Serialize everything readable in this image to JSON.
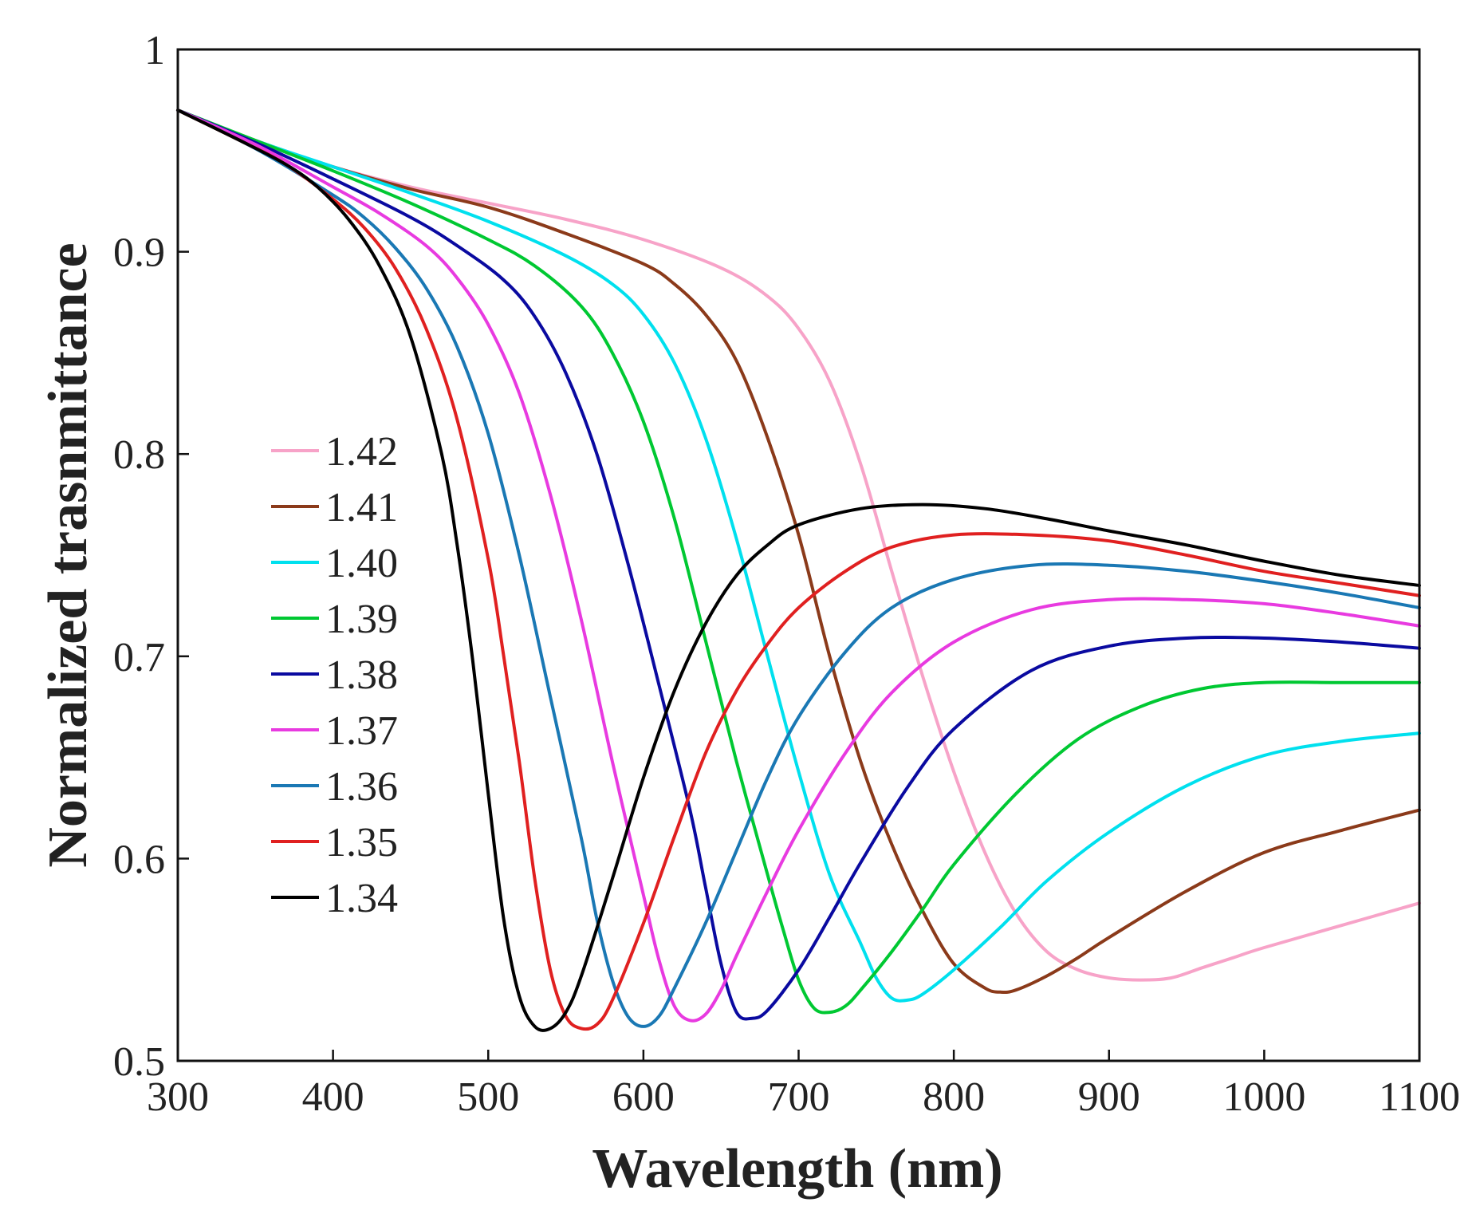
{
  "chart_data": {
    "type": "line",
    "title": "",
    "xlabel": "Wavelength (nm)",
    "ylabel": "Normalized trasnmittance",
    "xlim": [
      300,
      1100
    ],
    "ylim": [
      0.5,
      1
    ],
    "xticks": [
      300,
      400,
      500,
      600,
      700,
      800,
      900,
      1000,
      1100
    ],
    "xtick_labels": [
      "300",
      "400",
      "500",
      "600",
      "700",
      "800",
      "900",
      "1000",
      "1100"
    ],
    "yticks": [
      0.5,
      0.6,
      0.7,
      0.8,
      0.9,
      1
    ],
    "ytick_labels": [
      "0.5",
      "0.6",
      "0.7",
      "0.8",
      "0.9",
      "1"
    ],
    "grid": false,
    "legend_position": "center-left",
    "series": [
      {
        "name": "1.42",
        "color": "#f7a3c8",
        "points": [
          [
            300,
            0.97
          ],
          [
            350,
            0.955
          ],
          [
            400,
            0.942
          ],
          [
            450,
            0.932
          ],
          [
            500,
            0.924
          ],
          [
            550,
            0.916
          ],
          [
            600,
            0.906
          ],
          [
            650,
            0.892
          ],
          [
            680,
            0.878
          ],
          [
            700,
            0.862
          ],
          [
            720,
            0.836
          ],
          [
            740,
            0.795
          ],
          [
            760,
            0.742
          ],
          [
            780,
            0.69
          ],
          [
            800,
            0.643
          ],
          [
            820,
            0.603
          ],
          [
            840,
            0.573
          ],
          [
            860,
            0.554
          ],
          [
            880,
            0.545
          ],
          [
            900,
            0.541
          ],
          [
            920,
            0.54
          ],
          [
            940,
            0.541
          ],
          [
            960,
            0.546
          ],
          [
            980,
            0.551
          ],
          [
            1000,
            0.556
          ],
          [
            1050,
            0.567
          ],
          [
            1100,
            0.578
          ]
        ]
      },
      {
        "name": "1.41",
        "color": "#8b3a1a",
        "points": [
          [
            300,
            0.97
          ],
          [
            350,
            0.955
          ],
          [
            400,
            0.942
          ],
          [
            450,
            0.931
          ],
          [
            500,
            0.922
          ],
          [
            550,
            0.909
          ],
          [
            600,
            0.894
          ],
          [
            620,
            0.884
          ],
          [
            640,
            0.869
          ],
          [
            660,
            0.846
          ],
          [
            680,
            0.808
          ],
          [
            700,
            0.76
          ],
          [
            720,
            0.7
          ],
          [
            740,
            0.648
          ],
          [
            760,
            0.607
          ],
          [
            780,
            0.574
          ],
          [
            800,
            0.548
          ],
          [
            820,
            0.536
          ],
          [
            830,
            0.534
          ],
          [
            840,
            0.535
          ],
          [
            860,
            0.542
          ],
          [
            880,
            0.551
          ],
          [
            900,
            0.561
          ],
          [
            950,
            0.584
          ],
          [
            1000,
            0.603
          ],
          [
            1050,
            0.614
          ],
          [
            1100,
            0.624
          ]
        ]
      },
      {
        "name": "1.40",
        "color": "#00e0ee",
        "points": [
          [
            300,
            0.97
          ],
          [
            350,
            0.955
          ],
          [
            400,
            0.942
          ],
          [
            450,
            0.929
          ],
          [
            500,
            0.915
          ],
          [
            550,
            0.898
          ],
          [
            580,
            0.884
          ],
          [
            600,
            0.869
          ],
          [
            620,
            0.845
          ],
          [
            640,
            0.808
          ],
          [
            660,
            0.758
          ],
          [
            680,
            0.7
          ],
          [
            700,
            0.643
          ],
          [
            720,
            0.592
          ],
          [
            740,
            0.558
          ],
          [
            750,
            0.541
          ],
          [
            760,
            0.531
          ],
          [
            770,
            0.53
          ],
          [
            780,
            0.533
          ],
          [
            800,
            0.545
          ],
          [
            830,
            0.566
          ],
          [
            860,
            0.589
          ],
          [
            900,
            0.613
          ],
          [
            950,
            0.636
          ],
          [
            1000,
            0.651
          ],
          [
            1050,
            0.658
          ],
          [
            1100,
            0.662
          ]
        ]
      },
      {
        "name": "1.39",
        "color": "#00c832",
        "points": [
          [
            300,
            0.97
          ],
          [
            350,
            0.955
          ],
          [
            400,
            0.94
          ],
          [
            450,
            0.924
          ],
          [
            500,
            0.906
          ],
          [
            530,
            0.893
          ],
          [
            560,
            0.873
          ],
          [
            580,
            0.85
          ],
          [
            600,
            0.816
          ],
          [
            620,
            0.768
          ],
          [
            640,
            0.708
          ],
          [
            660,
            0.648
          ],
          [
            680,
            0.592
          ],
          [
            690,
            0.565
          ],
          [
            700,
            0.54
          ],
          [
            710,
            0.526
          ],
          [
            720,
            0.524
          ],
          [
            730,
            0.527
          ],
          [
            740,
            0.535
          ],
          [
            760,
            0.554
          ],
          [
            780,
            0.575
          ],
          [
            800,
            0.597
          ],
          [
            840,
            0.632
          ],
          [
            880,
            0.659
          ],
          [
            920,
            0.675
          ],
          [
            960,
            0.684
          ],
          [
            1000,
            0.687
          ],
          [
            1050,
            0.687
          ],
          [
            1100,
            0.687
          ]
        ]
      },
      {
        "name": "1.38",
        "color": "#0a0aa0",
        "points": [
          [
            300,
            0.97
          ],
          [
            350,
            0.954
          ],
          [
            400,
            0.936
          ],
          [
            450,
            0.917
          ],
          [
            480,
            0.903
          ],
          [
            510,
            0.886
          ],
          [
            530,
            0.868
          ],
          [
            550,
            0.84
          ],
          [
            570,
            0.8
          ],
          [
            590,
            0.746
          ],
          [
            610,
            0.686
          ],
          [
            630,
            0.624
          ],
          [
            640,
            0.586
          ],
          [
            650,
            0.548
          ],
          [
            660,
            0.524
          ],
          [
            670,
            0.521
          ],
          [
            680,
            0.525
          ],
          [
            700,
            0.545
          ],
          [
            720,
            0.571
          ],
          [
            740,
            0.598
          ],
          [
            770,
            0.635
          ],
          [
            800,
            0.664
          ],
          [
            850,
            0.693
          ],
          [
            900,
            0.705
          ],
          [
            950,
            0.709
          ],
          [
            1000,
            0.709
          ],
          [
            1050,
            0.707
          ],
          [
            1100,
            0.704
          ]
        ]
      },
      {
        "name": "1.37",
        "color": "#e83ae0",
        "points": [
          [
            300,
            0.97
          ],
          [
            350,
            0.953
          ],
          [
            400,
            0.932
          ],
          [
            430,
            0.919
          ],
          [
            460,
            0.903
          ],
          [
            480,
            0.887
          ],
          [
            500,
            0.864
          ],
          [
            520,
            0.83
          ],
          [
            540,
            0.78
          ],
          [
            560,
            0.718
          ],
          [
            580,
            0.648
          ],
          [
            600,
            0.582
          ],
          [
            610,
            0.55
          ],
          [
            620,
            0.527
          ],
          [
            630,
            0.52
          ],
          [
            640,
            0.523
          ],
          [
            650,
            0.535
          ],
          [
            660,
            0.552
          ],
          [
            680,
            0.584
          ],
          [
            700,
            0.614
          ],
          [
            730,
            0.652
          ],
          [
            760,
            0.682
          ],
          [
            800,
            0.707
          ],
          [
            850,
            0.723
          ],
          [
            900,
            0.728
          ],
          [
            950,
            0.728
          ],
          [
            1000,
            0.726
          ],
          [
            1050,
            0.721
          ],
          [
            1100,
            0.715
          ]
        ]
      },
      {
        "name": "1.36",
        "color": "#1a78b4",
        "points": [
          [
            300,
            0.97
          ],
          [
            350,
            0.951
          ],
          [
            400,
            0.928
          ],
          [
            420,
            0.917
          ],
          [
            440,
            0.902
          ],
          [
            460,
            0.882
          ],
          [
            480,
            0.853
          ],
          [
            500,
            0.81
          ],
          [
            520,
            0.75
          ],
          [
            540,
            0.68
          ],
          [
            560,
            0.61
          ],
          [
            570,
            0.57
          ],
          [
            580,
            0.54
          ],
          [
            590,
            0.522
          ],
          [
            600,
            0.517
          ],
          [
            610,
            0.522
          ],
          [
            620,
            0.536
          ],
          [
            640,
            0.568
          ],
          [
            660,
            0.604
          ],
          [
            680,
            0.64
          ],
          [
            700,
            0.67
          ],
          [
            730,
            0.702
          ],
          [
            760,
            0.724
          ],
          [
            800,
            0.738
          ],
          [
            850,
            0.745
          ],
          [
            900,
            0.745
          ],
          [
            950,
            0.742
          ],
          [
            1000,
            0.737
          ],
          [
            1050,
            0.731
          ],
          [
            1100,
            0.724
          ]
        ]
      },
      {
        "name": "1.35",
        "color": "#e02020",
        "points": [
          [
            300,
            0.97
          ],
          [
            340,
            0.955
          ],
          [
            370,
            0.943
          ],
          [
            400,
            0.926
          ],
          [
            420,
            0.912
          ],
          [
            440,
            0.892
          ],
          [
            460,
            0.862
          ],
          [
            480,
            0.817
          ],
          [
            500,
            0.748
          ],
          [
            510,
            0.7
          ],
          [
            520,
            0.648
          ],
          [
            530,
            0.59
          ],
          [
            540,
            0.545
          ],
          [
            550,
            0.522
          ],
          [
            560,
            0.516
          ],
          [
            570,
            0.518
          ],
          [
            580,
            0.53
          ],
          [
            600,
            0.568
          ],
          [
            620,
            0.611
          ],
          [
            640,
            0.652
          ],
          [
            660,
            0.683
          ],
          [
            680,
            0.706
          ],
          [
            700,
            0.724
          ],
          [
            730,
            0.742
          ],
          [
            760,
            0.754
          ],
          [
            800,
            0.76
          ],
          [
            850,
            0.76
          ],
          [
            900,
            0.757
          ],
          [
            950,
            0.75
          ],
          [
            1000,
            0.742
          ],
          [
            1050,
            0.736
          ],
          [
            1100,
            0.73
          ]
        ]
      },
      {
        "name": "1.34",
        "color": "#000000",
        "points": [
          [
            300,
            0.97
          ],
          [
            340,
            0.955
          ],
          [
            370,
            0.943
          ],
          [
            390,
            0.932
          ],
          [
            410,
            0.916
          ],
          [
            430,
            0.893
          ],
          [
            450,
            0.858
          ],
          [
            470,
            0.8
          ],
          [
            480,
            0.755
          ],
          [
            490,
            0.698
          ],
          [
            500,
            0.632
          ],
          [
            510,
            0.57
          ],
          [
            520,
            0.532
          ],
          [
            530,
            0.517
          ],
          [
            540,
            0.516
          ],
          [
            550,
            0.524
          ],
          [
            560,
            0.542
          ],
          [
            580,
            0.59
          ],
          [
            600,
            0.64
          ],
          [
            620,
            0.683
          ],
          [
            640,
            0.716
          ],
          [
            660,
            0.74
          ],
          [
            680,
            0.755
          ],
          [
            700,
            0.765
          ],
          [
            740,
            0.773
          ],
          [
            780,
            0.775
          ],
          [
            820,
            0.773
          ],
          [
            860,
            0.768
          ],
          [
            900,
            0.762
          ],
          [
            950,
            0.755
          ],
          [
            1000,
            0.747
          ],
          [
            1050,
            0.74
          ],
          [
            1100,
            0.735
          ]
        ]
      }
    ]
  }
}
